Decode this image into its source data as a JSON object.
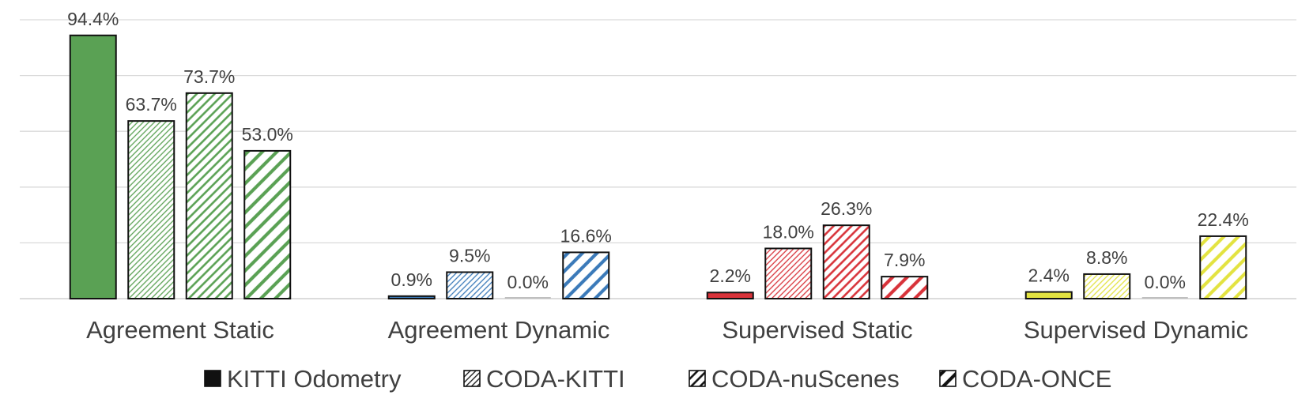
{
  "chart_data": {
    "type": "bar",
    "categories": [
      "Agreement Static",
      "Agreement Dynamic",
      "Supervised Static",
      "Supervised Dynamic"
    ],
    "series": [
      {
        "name": "KITTI Odometry",
        "pattern": "solid",
        "values": [
          94.4,
          0.9,
          2.2,
          2.4
        ],
        "labels": [
          "94.4%",
          "0.9%",
          "2.2%",
          "2.4%"
        ]
      },
      {
        "name": "CODA-KITTI",
        "pattern": "fine",
        "values": [
          63.7,
          9.5,
          18.0,
          8.8
        ],
        "labels": [
          "63.7%",
          "9.5%",
          "18.0%",
          "8.8%"
        ]
      },
      {
        "name": "CODA-nuScenes",
        "pattern": "medium",
        "values": [
          73.7,
          0.0,
          26.3,
          0.0
        ],
        "labels": [
          "73.7%",
          "0.0%",
          "26.3%",
          "0.0%"
        ]
      },
      {
        "name": "CODA-ONCE",
        "pattern": "wide",
        "values": [
          53.0,
          16.6,
          7.9,
          22.4
        ],
        "labels": [
          "53.0%",
          "16.6%",
          "7.9%",
          "22.4%"
        ]
      }
    ],
    "category_colors": [
      "#5aa154",
      "#3b7ab9",
      "#d8333a",
      "#e3e341"
    ],
    "ylim": [
      0,
      100
    ],
    "gridlines": true,
    "legend_position": "bottom",
    "title": "",
    "xlabel": "",
    "ylabel": ""
  }
}
